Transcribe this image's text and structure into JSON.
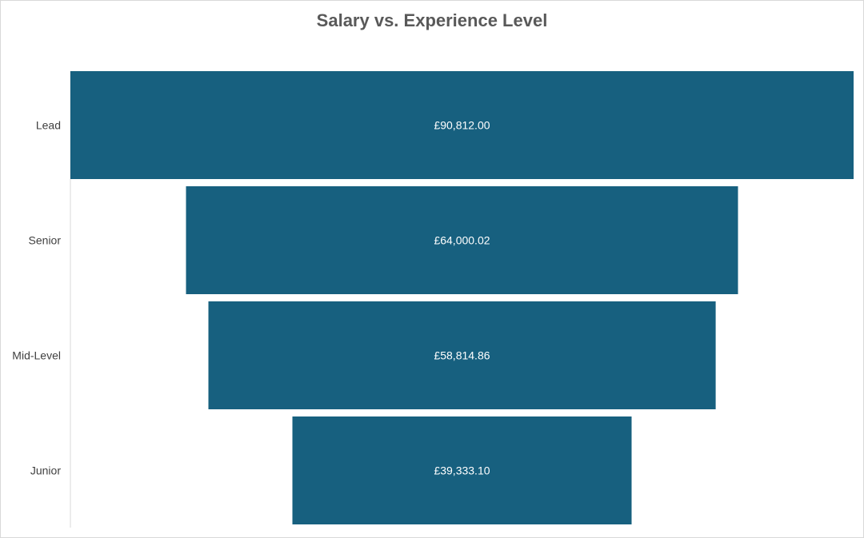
{
  "chart_data": {
    "type": "bar",
    "subtype": "funnel",
    "title": "Salary vs. Experience Level",
    "categories": [
      "Lead",
      "Senior",
      "Mid-Level",
      "Junior"
    ],
    "values": [
      90812.0,
      64000.02,
      58814.86,
      39333.1
    ],
    "data_labels": [
      "£90,812.00",
      "£64,000.02",
      "£58,814.86",
      "£39,333.10"
    ],
    "bar_color": "#17607f",
    "grid": false,
    "legend": "none"
  }
}
